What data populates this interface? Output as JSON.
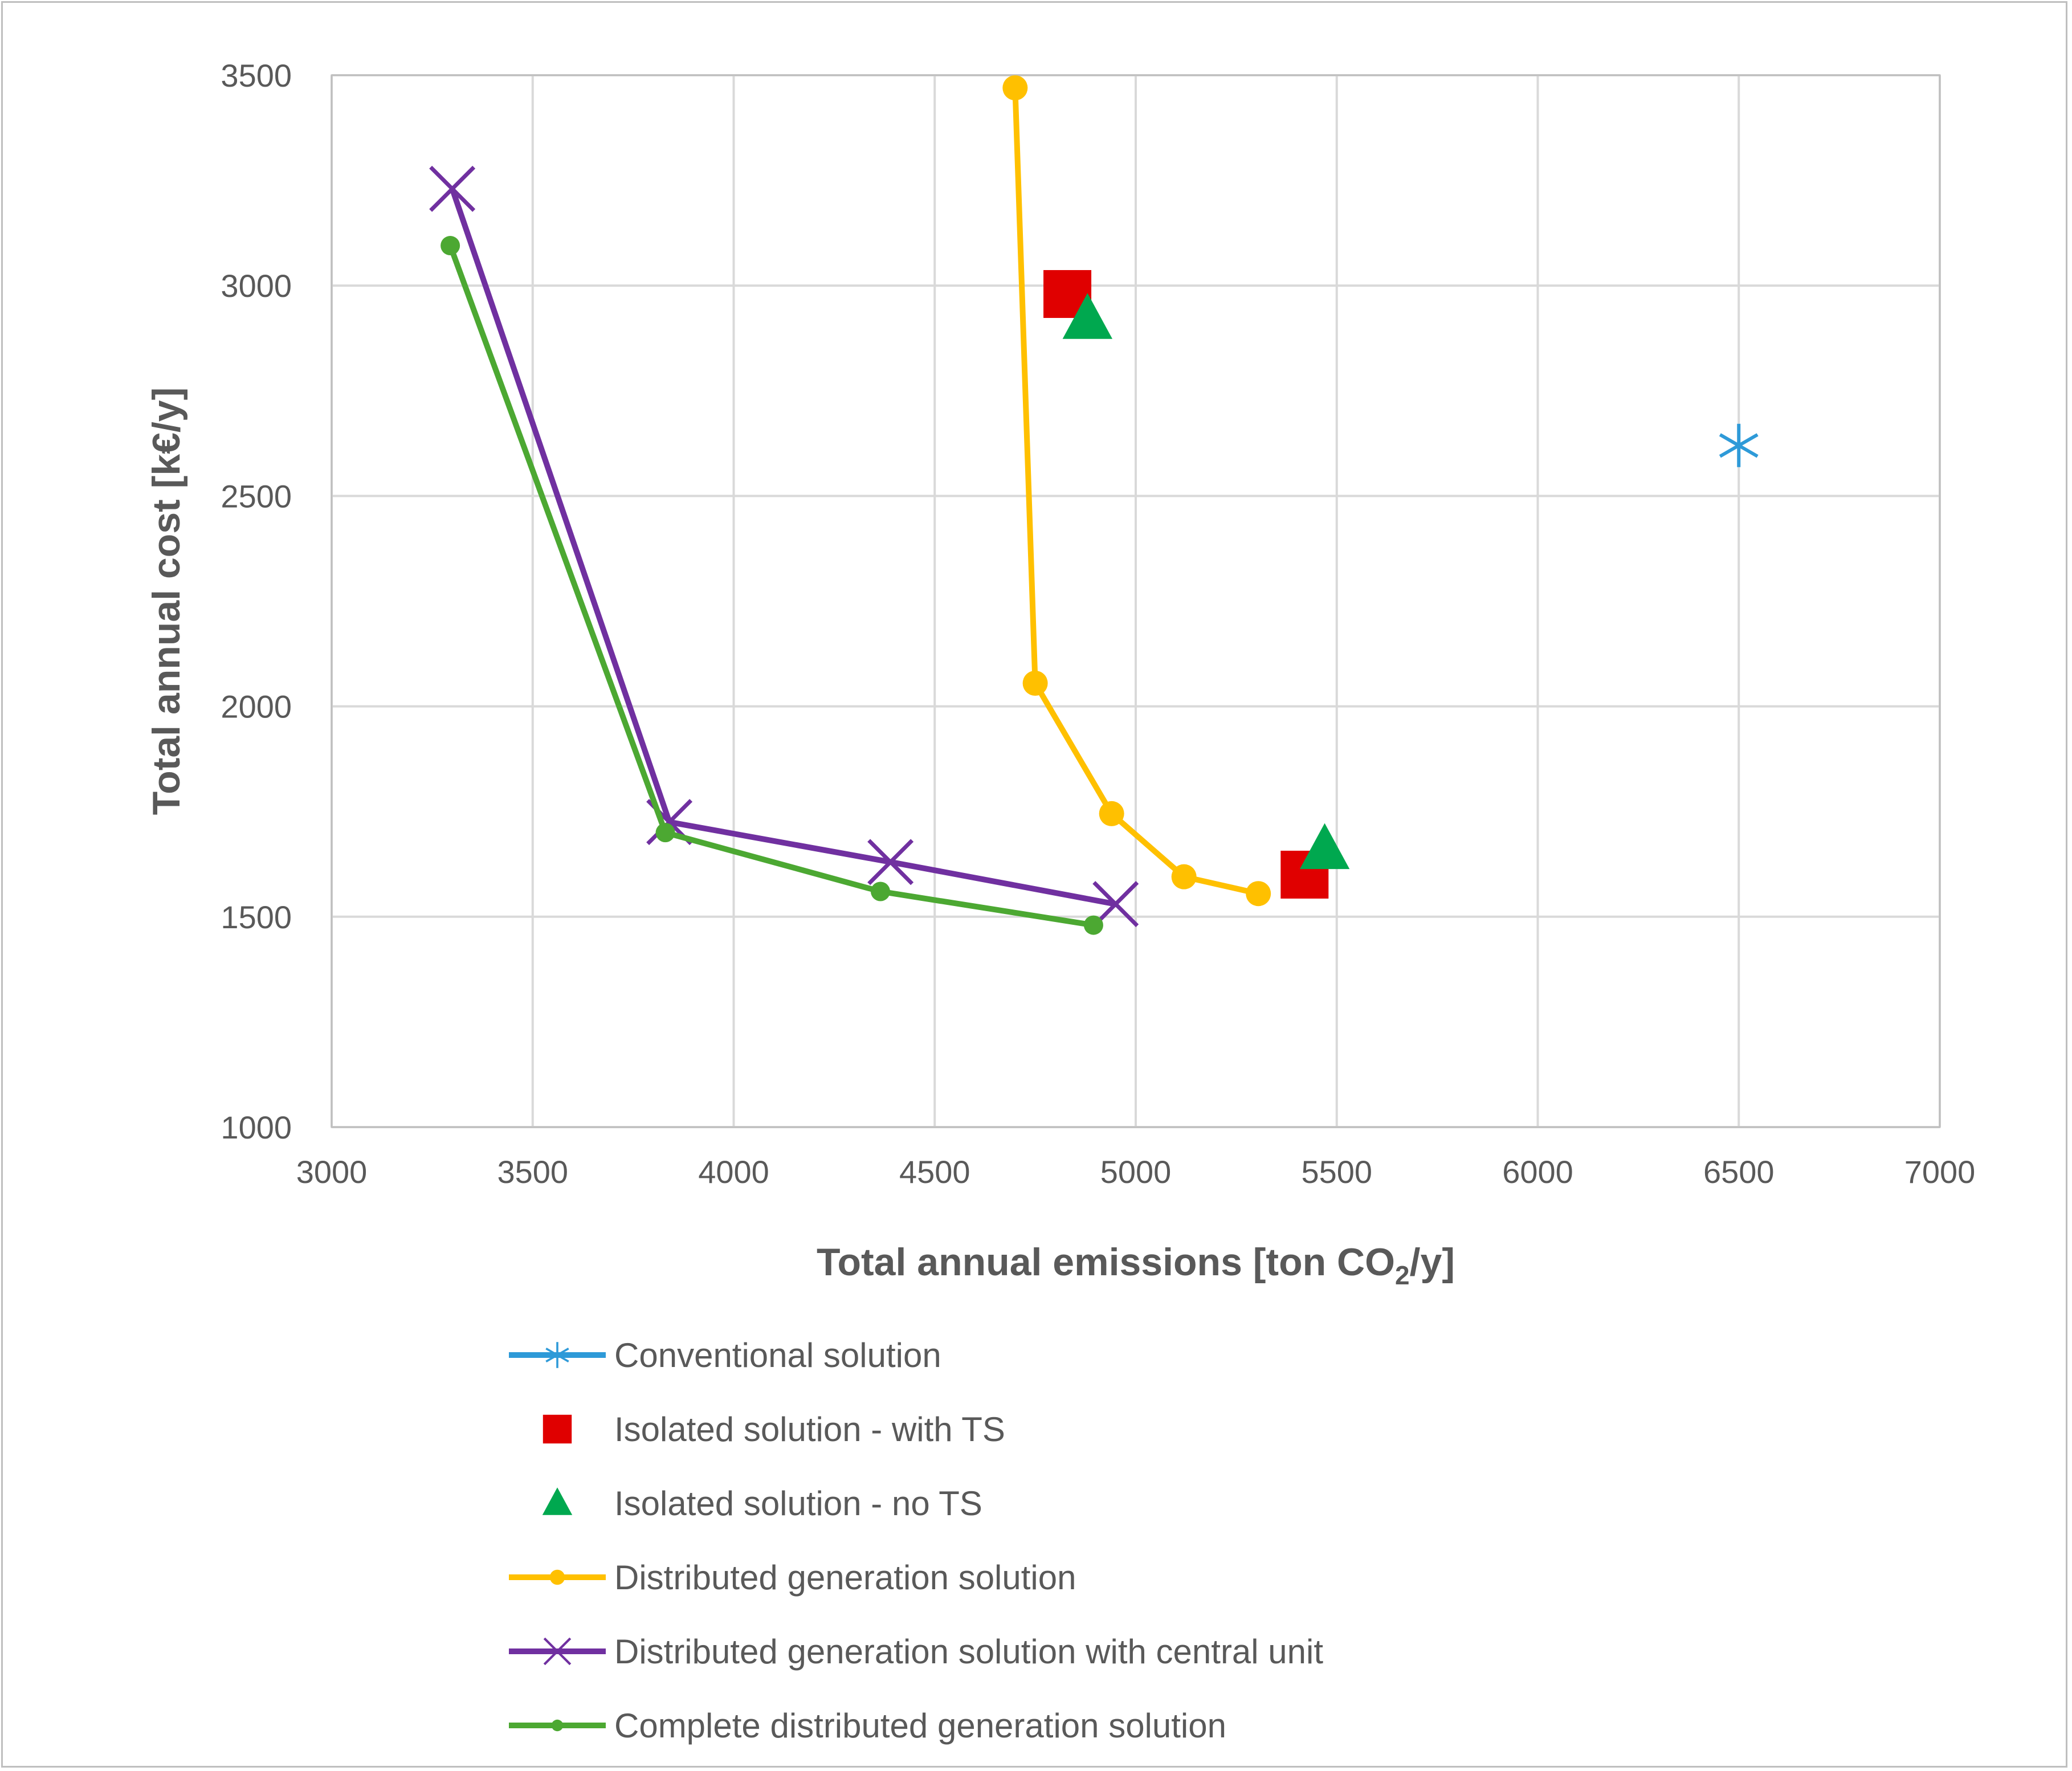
{
  "chart_data": {
    "type": "scatter",
    "title": "",
    "xlabel": {
      "prefix": "Total annual emissions [ton CO",
      "subscript": "2",
      "suffix": "/y]"
    },
    "ylabel": "Total annual cost [k€/y]",
    "xlim": [
      3000,
      7000
    ],
    "ylim": [
      1000,
      3500
    ],
    "xticks": [
      "3000",
      "3500",
      "4000",
      "4500",
      "5000",
      "5500",
      "6000",
      "6500",
      "7000"
    ],
    "yticks": [
      "1000",
      "1500",
      "2000",
      "2500",
      "3000",
      "3500"
    ],
    "grid": true,
    "legend_position": "bottom",
    "series": [
      {
        "name": "Conventional solution",
        "color": "#2e9ad8",
        "marker": "asterisk",
        "line": false,
        "legend_line": true,
        "points": [
          [
            6500,
            2620
          ]
        ]
      },
      {
        "name": "Isolated solution - with TS",
        "color": "#e00000",
        "marker": "square",
        "line": false,
        "legend_line": false,
        "points": [
          [
            4830,
            2980
          ],
          [
            5420,
            1600
          ]
        ]
      },
      {
        "name": "Isolated solution - no TS",
        "color": "#00a84f",
        "marker": "triangle",
        "line": false,
        "legend_line": false,
        "points": [
          [
            4880,
            2920
          ],
          [
            5470,
            1660
          ]
        ]
      },
      {
        "name": "Distributed generation solution",
        "color": "#ffc000",
        "marker": "circle",
        "line": true,
        "legend_line": true,
        "points": [
          [
            4700,
            3470
          ],
          [
            4750,
            2055
          ],
          [
            4940,
            1745
          ],
          [
            5120,
            1595
          ],
          [
            5305,
            1555
          ]
        ]
      },
      {
        "name": "Distributed generation solution with central unit",
        "color": "#7030a0",
        "marker": "x",
        "line": true,
        "legend_line": true,
        "points": [
          [
            3300,
            3230
          ],
          [
            3840,
            1725
          ],
          [
            4390,
            1630
          ],
          [
            4950,
            1530
          ]
        ]
      },
      {
        "name": "Complete distributed generation solution",
        "color": "#4ca832",
        "marker": "dot",
        "line": true,
        "legend_line": true,
        "points": [
          [
            3295,
            3095
          ],
          [
            3830,
            1700
          ],
          [
            4365,
            1560
          ],
          [
            4895,
            1480
          ]
        ]
      }
    ]
  }
}
